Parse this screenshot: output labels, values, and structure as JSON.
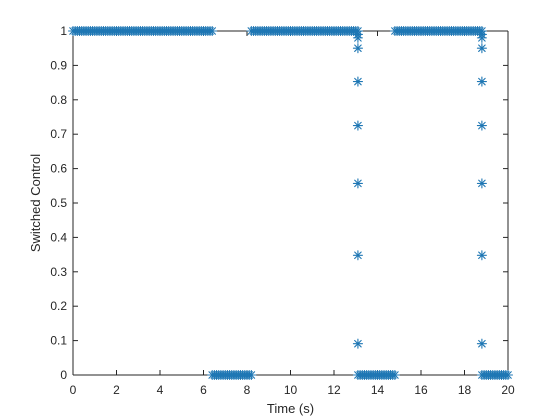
{
  "chart_data": {
    "type": "scatter",
    "title": "",
    "xlabel": "Time (s)",
    "ylabel": "Switched Control",
    "xlim": [
      0,
      20
    ],
    "ylim": [
      0,
      1
    ],
    "xticks": [
      0,
      2,
      4,
      6,
      8,
      10,
      12,
      14,
      16,
      18,
      20
    ],
    "yticks": [
      0,
      0.1,
      0.2,
      0.3,
      0.4,
      0.5,
      0.6,
      0.7,
      0.8,
      0.9,
      1
    ],
    "marker": "asterisk",
    "color": "#1f77b4",
    "grid": false,
    "box": true,
    "series": [
      {
        "segments": [
          {
            "x_start": 0.0,
            "x_end": 6.4,
            "step": 0.1,
            "y": 1
          },
          {
            "x_start": 6.4,
            "x_end": 8.2,
            "step": 0.1,
            "y": 0
          },
          {
            "x_start": 8.2,
            "x_end": 13.1,
            "step": 0.1,
            "y": 1
          },
          {
            "x_start": 13.1,
            "x_end": 14.8,
            "step": 0.1,
            "y": 0
          },
          {
            "x_start": 14.8,
            "x_end": 18.8,
            "step": 0.1,
            "y": 1
          },
          {
            "x_start": 18.8,
            "x_end": 20.0,
            "step": 0.1,
            "y": 0
          }
        ],
        "points": [
          [
            13.1,
            0.99
          ],
          [
            13.1,
            0.98
          ],
          [
            13.1,
            0.95
          ],
          [
            13.1,
            0.853
          ],
          [
            13.1,
            0.725
          ],
          [
            13.1,
            0.557
          ],
          [
            13.1,
            0.348
          ],
          [
            13.1,
            0.091
          ],
          [
            18.8,
            0.99
          ],
          [
            18.8,
            0.98
          ],
          [
            18.8,
            0.95
          ],
          [
            18.8,
            0.853
          ],
          [
            18.8,
            0.725
          ],
          [
            18.8,
            0.557
          ],
          [
            18.8,
            0.348
          ],
          [
            18.8,
            0.091
          ]
        ]
      }
    ]
  }
}
